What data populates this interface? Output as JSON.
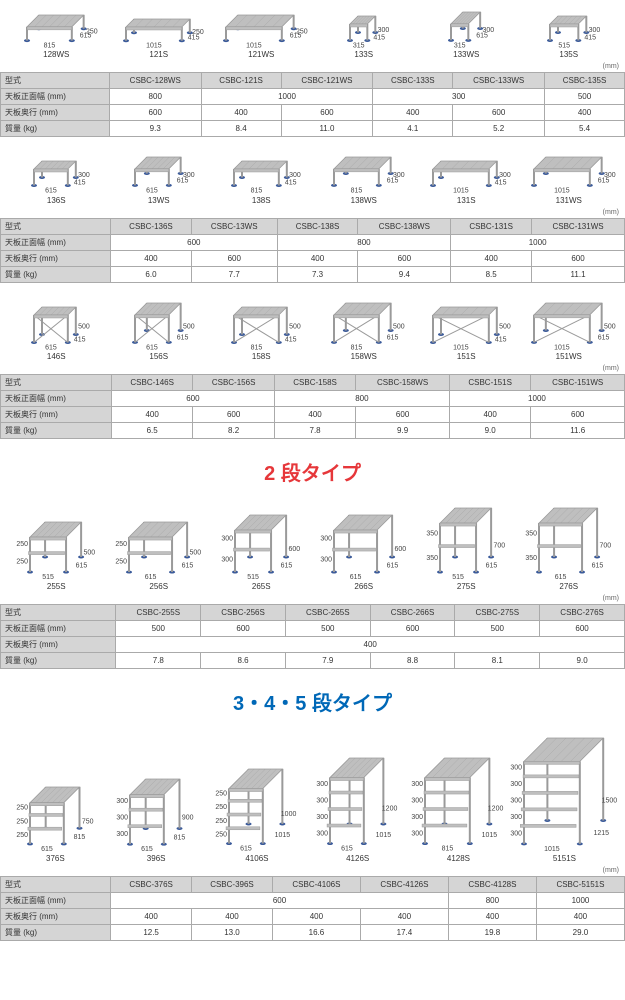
{
  "colors": {
    "title2": "#e6373a",
    "title345": "#0068b7",
    "steel": "#bfbfbf",
    "steelDark": "#9a9a9a",
    "foot": "#3a5a9a",
    "tableHeader": "#d5d5d5",
    "border": "#aaa"
  },
  "unit_label": "(mm)",
  "row_labels": {
    "model": "型式",
    "width": "天板正面幅 (mm)",
    "depth": "天板奥行 (mm)",
    "mass": "質量 (kg)"
  },
  "section1": {
    "rowA": {
      "products": [
        {
          "label": "128WS",
          "w": "815",
          "d": "615",
          "h": "250"
        },
        {
          "label": "121S",
          "w": "1015",
          "d": "415",
          "h": "250"
        },
        {
          "label": "121WS",
          "w": "1015",
          "d": "615",
          "h": "250"
        },
        {
          "label": "133S",
          "w": "315",
          "d": "415",
          "h": "300"
        },
        {
          "label": "133WS",
          "w": "315",
          "d": "615",
          "h": "300"
        },
        {
          "label": "135S",
          "w": "515",
          "d": "415",
          "h": "300"
        }
      ],
      "table": {
        "models": [
          "CSBC-128WS",
          "CSBC-121S",
          "CSBC-121WS",
          "CSBC-133S",
          "CSBC-133WS",
          "CSBC-135S"
        ],
        "width": [
          "800",
          "1000",
          "1000",
          "300",
          "300",
          "500"
        ],
        "depth": [
          "600",
          "400",
          "600",
          "400",
          "600",
          "400"
        ],
        "mass": [
          "9.3",
          "8.4",
          "11.0",
          "4.1",
          "5.2",
          "5.4"
        ]
      }
    },
    "rowB": {
      "products": [
        {
          "label": "136S",
          "w": "615",
          "d": "415",
          "h": "300"
        },
        {
          "label": "13WS",
          "w": "615",
          "d": "615",
          "h": "300"
        },
        {
          "label": "138S",
          "w": "815",
          "d": "415",
          "h": "300"
        },
        {
          "label": "138WS",
          "w": "815",
          "d": "615",
          "h": "300"
        },
        {
          "label": "131S",
          "w": "1015",
          "d": "415",
          "h": "300"
        },
        {
          "label": "131WS",
          "w": "1015",
          "d": "615",
          "h": "300"
        }
      ],
      "table": {
        "models": [
          "CSBC-136S",
          "CSBC-13WS",
          "CSBC-138S",
          "CSBC-138WS",
          "CSBC-131S",
          "CSBC-131WS"
        ],
        "width": [
          "600",
          "600",
          "800",
          "800",
          "1000",
          "1000"
        ],
        "depth": [
          "400",
          "600",
          "400",
          "600",
          "400",
          "600"
        ],
        "mass": [
          "6.0",
          "7.7",
          "7.3",
          "9.4",
          "8.5",
          "11.1"
        ]
      }
    },
    "rowC": {
      "products": [
        {
          "label": "146S",
          "w": "615",
          "d": "415",
          "h": "500"
        },
        {
          "label": "156S",
          "w": "615",
          "d": "615",
          "h": "500"
        },
        {
          "label": "158S",
          "w": "815",
          "d": "415",
          "h": "500"
        },
        {
          "label": "158WS",
          "w": "815",
          "d": "615",
          "h": "500"
        },
        {
          "label": "151S",
          "w": "1015",
          "d": "415",
          "h": "500"
        },
        {
          "label": "151WS",
          "w": "1015",
          "d": "615",
          "h": "500"
        }
      ],
      "table": {
        "models": [
          "CSBC-146S",
          "CSBC-156S",
          "CSBC-158S",
          "CSBC-158WS",
          "CSBC-151S",
          "CSBC-151WS"
        ],
        "width": [
          "600",
          "600",
          "800",
          "800",
          "1000",
          "1000"
        ],
        "depth": [
          "400",
          "600",
          "400",
          "600",
          "400",
          "600"
        ],
        "mass": [
          "6.5",
          "8.2",
          "7.8",
          "9.9",
          "9.0",
          "11.6"
        ]
      }
    }
  },
  "section2": {
    "title": "2 段タイプ",
    "products": [
      {
        "label": "255S",
        "w": "515",
        "d": "615",
        "h": "500",
        "steps": [
          "250",
          "250"
        ]
      },
      {
        "label": "256S",
        "w": "615",
        "d": "615",
        "h": "500",
        "steps": [
          "250",
          "250"
        ]
      },
      {
        "label": "265S",
        "w": "515",
        "d": "615",
        "h": "600",
        "steps": [
          "300",
          "300"
        ]
      },
      {
        "label": "266S",
        "w": "615",
        "d": "615",
        "h": "600",
        "steps": [
          "300",
          "300"
        ]
      },
      {
        "label": "275S",
        "w": "515",
        "d": "615",
        "h": "700",
        "steps": [
          "350",
          "350"
        ]
      },
      {
        "label": "276S",
        "w": "615",
        "d": "615",
        "h": "700",
        "steps": [
          "350",
          "350"
        ]
      }
    ],
    "table": {
      "models": [
        "CSBC-255S",
        "CSBC-256S",
        "CSBC-265S",
        "CSBC-266S",
        "CSBC-275S",
        "CSBC-276S"
      ],
      "width": [
        "500",
        "600",
        "500",
        "600",
        "500",
        "600"
      ],
      "depth": "400",
      "mass": [
        "7.8",
        "8.6",
        "7.9",
        "8.8",
        "8.1",
        "9.0"
      ]
    }
  },
  "section3": {
    "title": "3・4・5 段タイプ",
    "products": [
      {
        "label": "376S",
        "w": "615",
        "d": "815",
        "h": "750",
        "steps": [
          "250",
          "250",
          "250"
        ]
      },
      {
        "label": "396S",
        "w": "615",
        "d": "815",
        "h": "900",
        "steps": [
          "300",
          "300",
          "300"
        ]
      },
      {
        "label": "4106S",
        "w": "615",
        "d": "1015",
        "h": "1000",
        "steps": [
          "250",
          "250",
          "250",
          "250"
        ]
      },
      {
        "label": "4126S",
        "w": "615",
        "d": "1015",
        "h": "1200",
        "steps": [
          "300",
          "300",
          "300",
          "300"
        ]
      },
      {
        "label": "4128S",
        "w": "815",
        "d": "1015",
        "h": "1200",
        "steps": [
          "300",
          "300",
          "300",
          "300"
        ]
      },
      {
        "label": "5151S",
        "w": "1015",
        "d": "1215",
        "h": "1500",
        "steps": [
          "300",
          "300",
          "300",
          "300",
          "300"
        ]
      }
    ],
    "table": {
      "models": [
        "CSBC-376S",
        "CSBC-396S",
        "CSBC-4106S",
        "CSBC-4126S",
        "CSBC-4128S",
        "CSBC-5151S"
      ],
      "width": [
        "600",
        "600",
        "600",
        "600",
        "800",
        "1000"
      ],
      "depth": [
        "400",
        "400",
        "400",
        "400",
        "400",
        "400"
      ],
      "mass": [
        "12.5",
        "13.0",
        "16.6",
        "17.4",
        "19.8",
        "29.0"
      ]
    }
  }
}
